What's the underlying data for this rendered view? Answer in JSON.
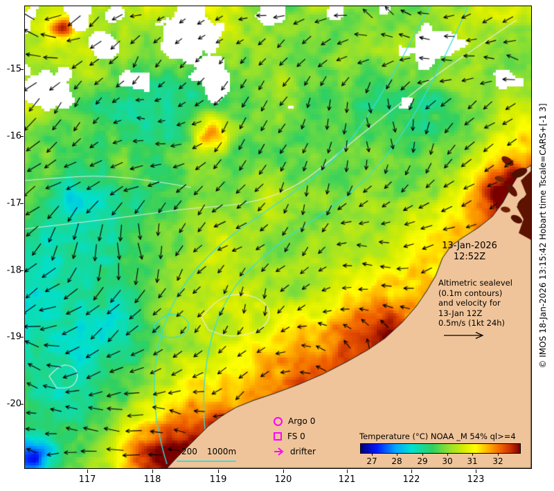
{
  "axes": {
    "lat_ticks": [
      "-15",
      "-16",
      "-17",
      "-18",
      "-19",
      "-20"
    ],
    "lon_ticks": [
      "117",
      "118",
      "119",
      "120",
      "121",
      "122",
      "123"
    ]
  },
  "annotations": {
    "date_line1": "13-Jan-2026",
    "date_line2": "12:52Z",
    "note_lines": [
      "Altimetric sealevel",
      "(0.1m contours)",
      "and velocity for",
      "13-Jan 12Z",
      "0.5m/s (1kt 24h)"
    ]
  },
  "legend": {
    "argo_label": "Argo 0",
    "fs_label": "FS 0",
    "drifter_label": "drifter",
    "marker_color": "#ff00ff"
  },
  "bathymetry": {
    "label_200": "200",
    "label_1000": "1000m",
    "line_color": "#35e0e0"
  },
  "colorbar": {
    "title": "Temperature (°C) NOAA _M 54% ql>=4",
    "ticks": [
      "27",
      "28",
      "29",
      "30",
      "31",
      "32"
    ],
    "range_note": "27-32 °C",
    "colormap": [
      {
        "t": 0.0,
        "c": "#00007a"
      },
      {
        "t": 0.1,
        "c": "#0018ff"
      },
      {
        "t": 0.22,
        "c": "#00a8ff"
      },
      {
        "t": 0.32,
        "c": "#00e0d0"
      },
      {
        "t": 0.45,
        "c": "#30d060"
      },
      {
        "t": 0.55,
        "c": "#90e030"
      },
      {
        "t": 0.65,
        "c": "#d8ee00"
      },
      {
        "t": 0.72,
        "c": "#ffff00"
      },
      {
        "t": 0.8,
        "c": "#ffb000"
      },
      {
        "t": 0.88,
        "c": "#f06000"
      },
      {
        "t": 0.94,
        "c": "#c83000"
      },
      {
        "t": 1.0,
        "c": "#7a0000"
      }
    ]
  },
  "copyright": "© IMOS 18-Jan-2026 13:15:42 Hobart time Tscale=CARS+[-1 3]",
  "map_colors": {
    "land": "#f0c49a",
    "coastline": "#1a1a1a",
    "sealevel_contour": "#eeeeee",
    "arrow": "#000000"
  }
}
